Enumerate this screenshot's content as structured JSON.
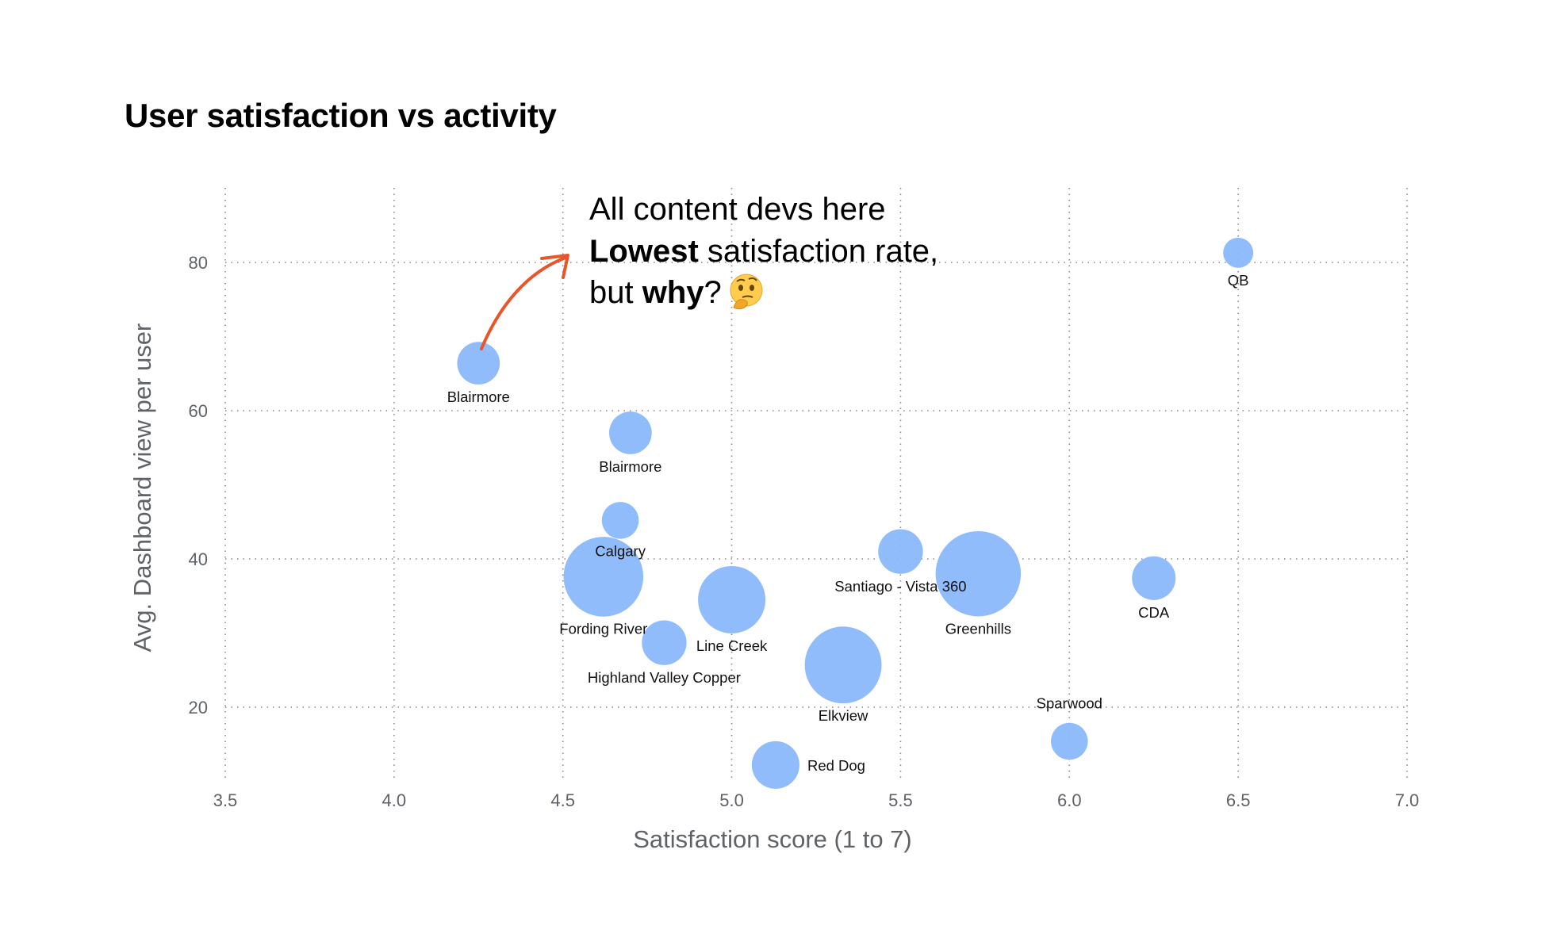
{
  "chart_data": {
    "type": "scatter",
    "title": "User satisfaction vs activity",
    "xlabel": "Satisfaction score (1 to 7)",
    "ylabel": "Avg. Dashboard view per user",
    "xlim": [
      3.5,
      7.0
    ],
    "ylim": [
      10,
      90
    ],
    "xticks": [
      "3.5",
      "4.0",
      "4.5",
      "5.0",
      "5.5",
      "6.0",
      "6.5",
      "7.0"
    ],
    "yticks": [
      "20",
      "40",
      "60",
      "80"
    ],
    "grid": true,
    "marker_color": "#8ab8fb",
    "annotation_arrow_color": "#e8552b",
    "points": [
      {
        "label": "QB",
        "x": 6.5,
        "y": 81.3,
        "size": 1
      },
      {
        "label": "Blairmore",
        "x": 4.25,
        "y": 66.4,
        "size": 2
      },
      {
        "label": "Blairmore",
        "x": 4.7,
        "y": 57.0,
        "size": 2
      },
      {
        "label": "Calgary",
        "x": 4.67,
        "y": 45.2,
        "size": 1.5
      },
      {
        "label": "Fording River",
        "x": 4.62,
        "y": 37.6,
        "size": 7
      },
      {
        "label": "Santiago - Vista 360",
        "x": 5.5,
        "y": 41.0,
        "size": 2.2
      },
      {
        "label": "Greenhills",
        "x": 5.73,
        "y": 38.0,
        "size": 8
      },
      {
        "label": "CDA",
        "x": 6.25,
        "y": 37.4,
        "size": 2.1
      },
      {
        "label": "Line Creek",
        "x": 5.0,
        "y": 34.5,
        "size": 5
      },
      {
        "label": "Highland Valley Copper",
        "x": 4.8,
        "y": 28.7,
        "size": 2.2
      },
      {
        "label": "Elkview",
        "x": 5.33,
        "y": 25.7,
        "size": 6.5
      },
      {
        "label": "Sparwood",
        "x": 6.0,
        "y": 15.4,
        "size": 1.5
      },
      {
        "label": "Red Dog",
        "x": 5.13,
        "y": 12.2,
        "size": 2.5
      }
    ],
    "annotation": {
      "line1": "All content devs here",
      "line2_bold": "Lowest",
      "line2_rest": " satisfaction rate,",
      "line3_pre": "but ",
      "line3_bold": "why",
      "line3_post": "?",
      "emoji": "thinking-face"
    }
  }
}
